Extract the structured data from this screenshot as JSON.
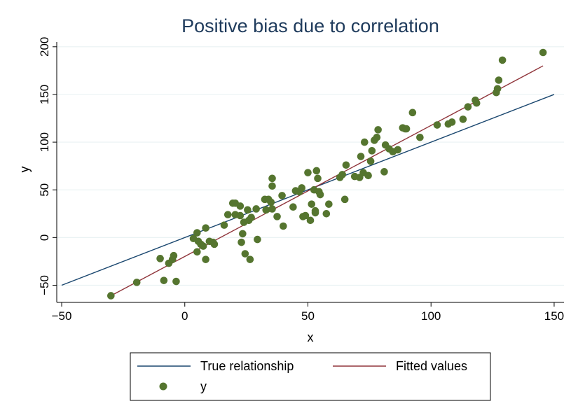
{
  "chart_data": {
    "type": "scatter",
    "title": "Positive bias due to correlation",
    "xlabel": "x",
    "ylabel": "y",
    "xlim": [
      -52,
      154
    ],
    "ylim": [
      -68,
      205
    ],
    "x_ticks": [
      -50,
      0,
      50,
      100,
      150
    ],
    "x_tick_labels": [
      "−50",
      "0",
      "50",
      "100",
      "150"
    ],
    "y_ticks": [
      -50,
      0,
      50,
      100,
      150,
      200
    ],
    "y_tick_labels": [
      "−50",
      "0",
      "50",
      "100",
      "150",
      "200"
    ],
    "grid": "horizontal",
    "legend_position": "bottom",
    "colors": {
      "true_line": "#1a476f",
      "fitted_line": "#90353b",
      "points": "#55752f",
      "grid": "#eaf2f3",
      "title": "#1f3b5c"
    },
    "series": [
      {
        "name": "True relationship",
        "kind": "line",
        "x": [
          -50,
          150
        ],
        "y": [
          -50,
          150
        ]
      },
      {
        "name": "Fitted values",
        "kind": "line",
        "x": [
          -30,
          145.5
        ],
        "y": [
          -61,
          180
        ]
      },
      {
        "name": "y",
        "kind": "scatter",
        "points": [
          [
            -30,
            -61
          ],
          [
            -19.5,
            -47
          ],
          [
            -10,
            -22
          ],
          [
            -8.5,
            -45
          ],
          [
            -6.5,
            -27
          ],
          [
            -5,
            -23
          ],
          [
            -4.5,
            -19
          ],
          [
            -3.5,
            -46
          ],
          [
            3.5,
            -1
          ],
          [
            5,
            -15
          ],
          [
            5,
            5
          ],
          [
            5.5,
            -4
          ],
          [
            6.5,
            -7
          ],
          [
            7.5,
            -9
          ],
          [
            8.5,
            10
          ],
          [
            8.5,
            -23
          ],
          [
            10,
            -4
          ],
          [
            11.5,
            -5
          ],
          [
            12,
            -7
          ],
          [
            16,
            13
          ],
          [
            17.5,
            24
          ],
          [
            19.5,
            36
          ],
          [
            20.5,
            36
          ],
          [
            20.5,
            24
          ],
          [
            22.5,
            23
          ],
          [
            22.5,
            33
          ],
          [
            23,
            -5
          ],
          [
            23.5,
            4
          ],
          [
            24,
            16
          ],
          [
            24.5,
            -17
          ],
          [
            25.5,
            29
          ],
          [
            26,
            18
          ],
          [
            26.5,
            -23
          ],
          [
            27,
            21
          ],
          [
            29,
            30
          ],
          [
            29.5,
            -2
          ],
          [
            32.5,
            40
          ],
          [
            33,
            29
          ],
          [
            34,
            40
          ],
          [
            35,
            37
          ],
          [
            35.5,
            54
          ],
          [
            35.5,
            62
          ],
          [
            35.5,
            30
          ],
          [
            37.5,
            22
          ],
          [
            39.5,
            44
          ],
          [
            40,
            12
          ],
          [
            44,
            32
          ],
          [
            45,
            49
          ],
          [
            46.5,
            48
          ],
          [
            47.5,
            52
          ],
          [
            48,
            22
          ],
          [
            49,
            23
          ],
          [
            50,
            68
          ],
          [
            51,
            18
          ],
          [
            51.5,
            35
          ],
          [
            52.5,
            50
          ],
          [
            53,
            28
          ],
          [
            53,
            26
          ],
          [
            53.5,
            70
          ],
          [
            54,
            62
          ],
          [
            54.5,
            48
          ],
          [
            55,
            45
          ],
          [
            57.5,
            25
          ],
          [
            58.5,
            35
          ],
          [
            63,
            63
          ],
          [
            64,
            66
          ],
          [
            65,
            40
          ],
          [
            65.5,
            76
          ],
          [
            69,
            64
          ],
          [
            71,
            63
          ],
          [
            71.5,
            85
          ],
          [
            72.5,
            68
          ],
          [
            73,
            100
          ],
          [
            74.5,
            65
          ],
          [
            75.5,
            80
          ],
          [
            76,
            91
          ],
          [
            77,
            102
          ],
          [
            78,
            105
          ],
          [
            78.5,
            113
          ],
          [
            81,
            69
          ],
          [
            81.5,
            97
          ],
          [
            83,
            93
          ],
          [
            84.5,
            90
          ],
          [
            86.5,
            92
          ],
          [
            88.5,
            115
          ],
          [
            89.5,
            114
          ],
          [
            90,
            114
          ],
          [
            92.5,
            131
          ],
          [
            95.5,
            105
          ],
          [
            102.5,
            118
          ],
          [
            107,
            119
          ],
          [
            108.5,
            121
          ],
          [
            113,
            124
          ],
          [
            115,
            137
          ],
          [
            118,
            144
          ],
          [
            118.5,
            141
          ],
          [
            126.5,
            152
          ],
          [
            127,
            156
          ],
          [
            127.5,
            165
          ],
          [
            129,
            186
          ],
          [
            145.5,
            194
          ]
        ]
      }
    ]
  }
}
